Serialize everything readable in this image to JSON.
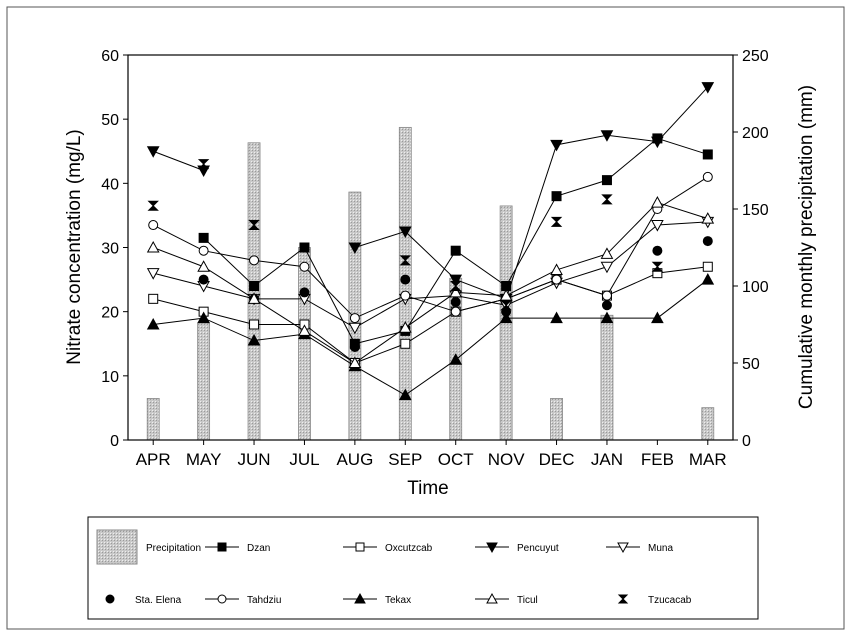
{
  "chart_data": {
    "type": "bar+line",
    "xlabel": "Time",
    "ylabel_left": "Nitrate concentration (mg/L)",
    "ylabel_right": "Cumulative monthly precipitation (mm)",
    "categories": [
      "APR",
      "MAY",
      "JUN",
      "JUL",
      "AUG",
      "SEP",
      "OCT",
      "NOV",
      "DEC",
      "JAN",
      "FEB",
      "MAR"
    ],
    "ylim_left": [
      0,
      60
    ],
    "yticks_left": [
      0,
      10,
      20,
      30,
      40,
      50,
      60
    ],
    "ylim_right": [
      0,
      250
    ],
    "yticks_right": [
      0,
      50,
      100,
      150,
      200,
      250
    ],
    "bar_color": "#c8c8c8",
    "precipitation": {
      "name": "Precipitation",
      "axis": "right",
      "values": [
        27,
        76,
        193,
        125,
        161,
        203,
        105,
        152,
        27,
        81,
        0,
        21
      ]
    },
    "series": [
      {
        "name": "Dzan",
        "marker": "filled-square",
        "values": [
          null,
          31.5,
          24,
          30,
          15,
          17,
          29.5,
          24,
          38,
          40.5,
          47,
          44.5
        ]
      },
      {
        "name": "Oxcutzcab",
        "marker": "open-square",
        "values": [
          22,
          20,
          18,
          18,
          12,
          15,
          20,
          22,
          25,
          22.5,
          26,
          27
        ]
      },
      {
        "name": "Pencuyut",
        "marker": "filled-triangle-down",
        "values": [
          45,
          42,
          null,
          null,
          30,
          32.5,
          25,
          22,
          46,
          47.5,
          46.5,
          55
        ]
      },
      {
        "name": "Muna",
        "marker": "open-triangle-down",
        "values": [
          26,
          24,
          22,
          22,
          17.5,
          22,
          22.5,
          21,
          24.5,
          27,
          33.5,
          34
        ]
      },
      {
        "name": "Sta. Elena",
        "marker": "filled-circle",
        "values": [
          null,
          25,
          22,
          23,
          14.5,
          25,
          21.5,
          20,
          25,
          21,
          29.5,
          31
        ]
      },
      {
        "name": "Tahdziu",
        "marker": "open-circle",
        "values": [
          33.5,
          29.5,
          28,
          27,
          19,
          22.5,
          20,
          22,
          25,
          22.5,
          36,
          41
        ]
      },
      {
        "name": "Tekax",
        "marker": "filled-triangle-up",
        "values": [
          18,
          19,
          15.5,
          16.5,
          11.5,
          7,
          12.5,
          19,
          19,
          19,
          19,
          25
        ]
      },
      {
        "name": "Ticul",
        "marker": "open-triangle-up",
        "values": [
          30,
          27,
          22,
          17,
          12,
          17.5,
          23,
          22.5,
          26.5,
          29,
          37,
          34.5
        ]
      },
      {
        "name": "Tzucacab",
        "marker": "hourglass",
        "values": [
          36.5,
          43,
          33.5,
          null,
          null,
          28,
          24,
          21,
          34,
          37.5,
          27,
          null
        ]
      }
    ],
    "legend_position": "bottom"
  }
}
